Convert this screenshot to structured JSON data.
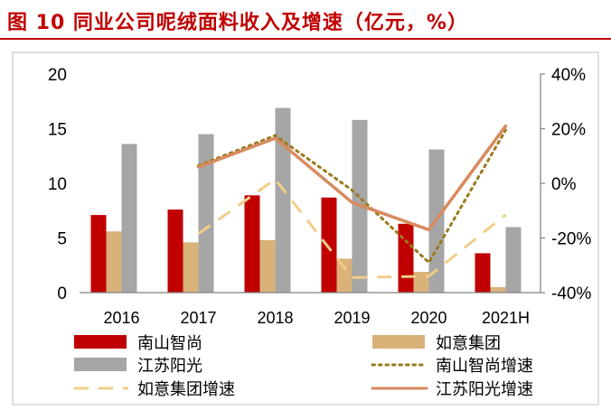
{
  "title": "图 10 同业公司呢绒面料收入及增速（亿元，%）",
  "colors": {
    "title": "#c00000",
    "nanshan": "#c00000",
    "ruyi": "#d9b27a",
    "jiangsu": "#a6a6a6",
    "nanshan_growth": "#9a7a1c",
    "ruyi_growth": "#f0cd88",
    "jiangsu_growth": "#d88a5f"
  },
  "chart_data": {
    "type": "bar",
    "categories": [
      "2016",
      "2017",
      "2018",
      "2019",
      "2020",
      "2021H"
    ],
    "ylim_left": [
      0,
      20
    ],
    "yticks_left": [
      "0",
      "5",
      "10",
      "15",
      "20"
    ],
    "ylim_right": [
      -40,
      40
    ],
    "yticks_right": [
      "-40%",
      "-20%",
      "0%",
      "20%",
      "40%"
    ],
    "grid": false,
    "legend_position": "bottom",
    "series": [
      {
        "name": "南山智尚",
        "type": "bar",
        "axis": "left",
        "values": [
          7.1,
          7.6,
          8.9,
          8.7,
          6.3,
          3.6
        ]
      },
      {
        "name": "如意集团",
        "type": "bar",
        "axis": "left",
        "values": [
          5.6,
          4.6,
          4.8,
          3.1,
          1.9,
          0.5
        ]
      },
      {
        "name": "江苏阳光",
        "type": "bar",
        "axis": "left",
        "values": [
          13.6,
          14.5,
          16.9,
          15.8,
          13.1,
          6.0
        ]
      },
      {
        "name": "南山智尚增速",
        "type": "line",
        "axis": "right",
        "style": "dotted",
        "values": [
          null,
          6.5,
          17.5,
          -2.5,
          -29.0,
          19.5
        ]
      },
      {
        "name": "如意集团增速",
        "type": "line",
        "axis": "right",
        "style": "dashed",
        "values": [
          null,
          -18.5,
          1.5,
          -34.5,
          -34.0,
          -11.5
        ]
      },
      {
        "name": "江苏阳光增速",
        "type": "line",
        "axis": "right",
        "style": "solid",
        "values": [
          null,
          6.0,
          16.5,
          -7.0,
          -17.0,
          21.0
        ]
      }
    ]
  }
}
